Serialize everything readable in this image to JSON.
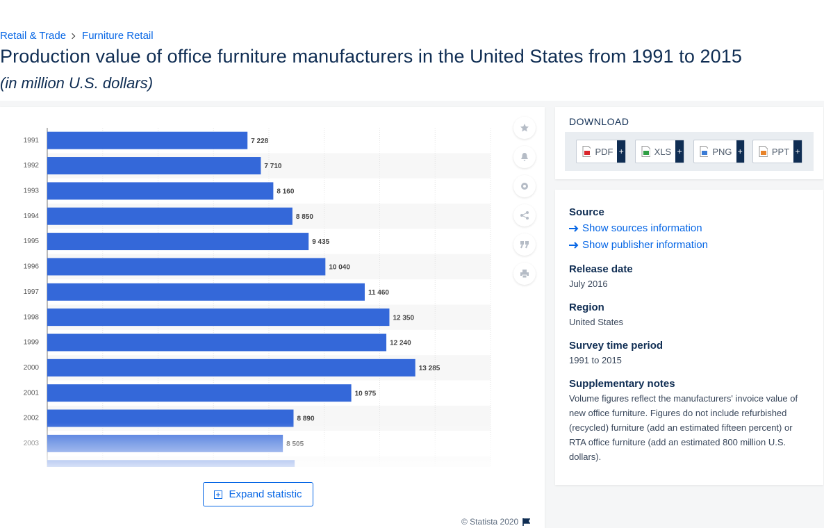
{
  "breadcrumb": [
    "Retail & Trade",
    "Furniture Retail"
  ],
  "header": {
    "title": "Production value of office furniture manufacturers in the United States from 1991 to 2015",
    "subtitle": "(in million U.S. dollars)"
  },
  "chart_data": {
    "type": "bar",
    "orientation": "horizontal",
    "categories": [
      "1991",
      "1992",
      "1993",
      "1994",
      "1995",
      "1996",
      "1997",
      "1998",
      "1999",
      "2000",
      "2001",
      "2002",
      "2003",
      null
    ],
    "values": [
      7228,
      7710,
      8160,
      8850,
      9435,
      10040,
      11460,
      12350,
      12240,
      13285,
      10975,
      8890,
      8505,
      8930
    ],
    "value_labels": [
      "7 228",
      "7 710",
      "8 160",
      "8 850",
      "9 435",
      "10 040",
      "11 460",
      "12 350",
      "12 240",
      "13 285",
      "10 975",
      "8 890",
      "8 505",
      null
    ],
    "color": "#3468d9",
    "xlim": [
      0,
      16000
    ],
    "xticks": [
      0,
      2000,
      4000,
      6000,
      8000,
      10000,
      12000,
      14000,
      16000
    ],
    "grid": true
  },
  "expand_button": "Expand statistic",
  "copyright": "© Statista 2020",
  "download": {
    "title": "DOWNLOAD",
    "plus": "+",
    "formats": [
      "PDF",
      "XLS",
      "PNG",
      "PPT"
    ]
  },
  "details": {
    "source_label": "Source",
    "links": [
      "Show sources information",
      "Show publisher information"
    ],
    "items": [
      {
        "label": "Release date",
        "value": "July 2016"
      },
      {
        "label": "Region",
        "value": "United States"
      },
      {
        "label": "Survey time period",
        "value": "1991 to 2015"
      },
      {
        "label": "Supplementary notes",
        "value": "Volume figures reflect the manufacturers' invoice value of new office furniture. Figures do not include refurbished (recycled) furniture (add an estimated fifteen percent) or RTA office furniture (add an estimated 800 million U.S. dollars)."
      }
    ]
  }
}
